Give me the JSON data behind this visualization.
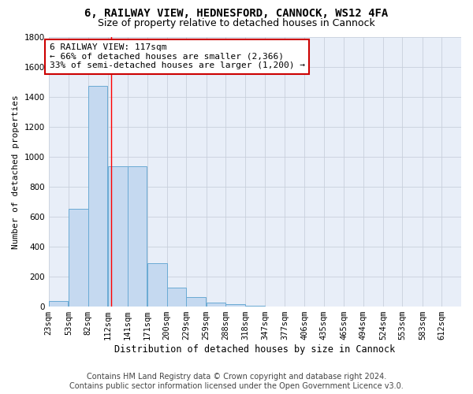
{
  "title1": "6, RAILWAY VIEW, HEDNESFORD, CANNOCK, WS12 4FA",
  "title2": "Size of property relative to detached houses in Cannock",
  "xlabel": "Distribution of detached houses by size in Cannock",
  "ylabel": "Number of detached properties",
  "bins": [
    23,
    53,
    82,
    112,
    141,
    171,
    200,
    229,
    259,
    288,
    318,
    347,
    377,
    406,
    435,
    465,
    494,
    524,
    553,
    583,
    612
  ],
  "counts": [
    35,
    650,
    1470,
    935,
    935,
    290,
    125,
    65,
    25,
    15,
    5,
    2,
    2,
    2,
    1,
    1,
    0,
    0,
    0,
    0
  ],
  "bar_color": "#c5d9f0",
  "bar_edge_color": "#6aaad4",
  "grid_color": "#c8d0dc",
  "bg_color": "#e8eef8",
  "red_line_x": 117,
  "annotation_text": "6 RAILWAY VIEW: 117sqm\n← 66% of detached houses are smaller (2,366)\n33% of semi-detached houses are larger (1,200) →",
  "annotation_box_color": "#ffffff",
  "annotation_border_color": "#cc0000",
  "footer_line1": "Contains HM Land Registry data © Crown copyright and database right 2024.",
  "footer_line2": "Contains public sector information licensed under the Open Government Licence v3.0.",
  "ylim": [
    0,
    1800
  ],
  "title1_fontsize": 10,
  "title2_fontsize": 9,
  "xlabel_fontsize": 8.5,
  "ylabel_fontsize": 8,
  "tick_fontsize": 7.5,
  "annotation_fontsize": 8,
  "footer_fontsize": 7
}
